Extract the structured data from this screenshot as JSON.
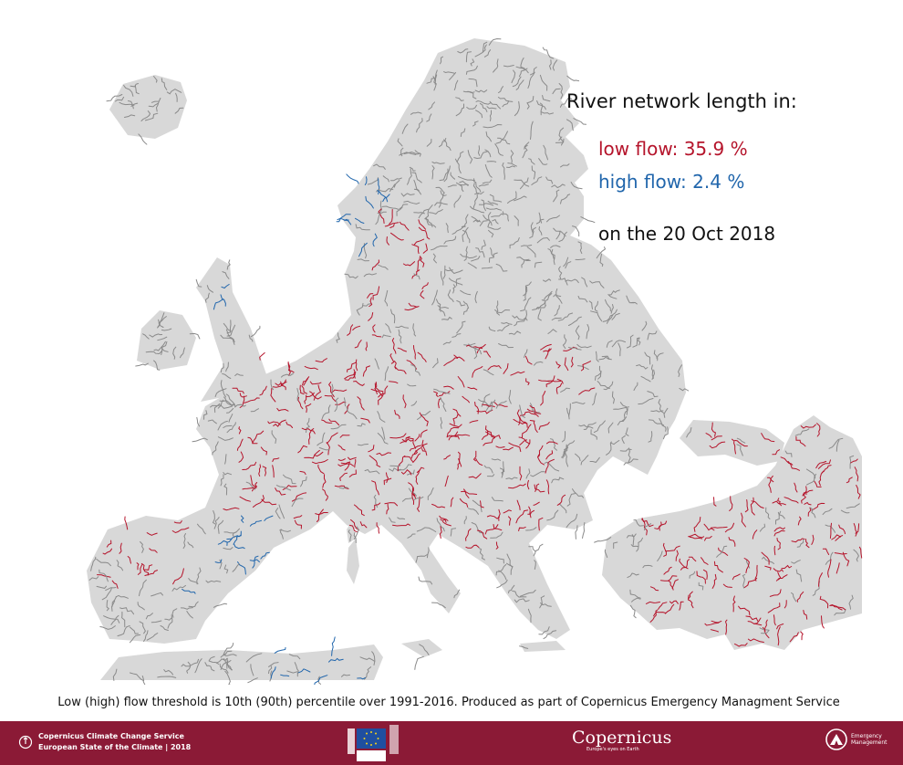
{
  "legend": {
    "title": "River network length in:",
    "low_flow_label": "low flow: 35.9 %",
    "high_flow_label": "high flow: 2.4 %",
    "date_label": "on the 20 Oct 2018",
    "low_flow_percent": 35.9,
    "high_flow_percent": 2.4
  },
  "caption": "Low (high) flow threshold is 10th (90th) percentile over 1991-2016. Produced as part of Copernicus Emergency Managment Service",
  "footer": {
    "c3s_line1": "Copernicus Climate Change Service",
    "c3s_line2": "European State of the Climate | 2018",
    "eu_label": "European Commission",
    "copernicus_name": "Copernicus",
    "copernicus_tagline": "Europe's eyes on Earth",
    "em_line1": "Emergency",
    "em_line2": "Management"
  },
  "colors": {
    "land": "#d8d8d8",
    "river_normal": "#8a8a8a",
    "river_low_flow": "#b5142b",
    "river_high_flow": "#2166ac",
    "footer_bg": "#8b1a36",
    "low_text": "#b5142b",
    "high_text": "#2166ac"
  }
}
